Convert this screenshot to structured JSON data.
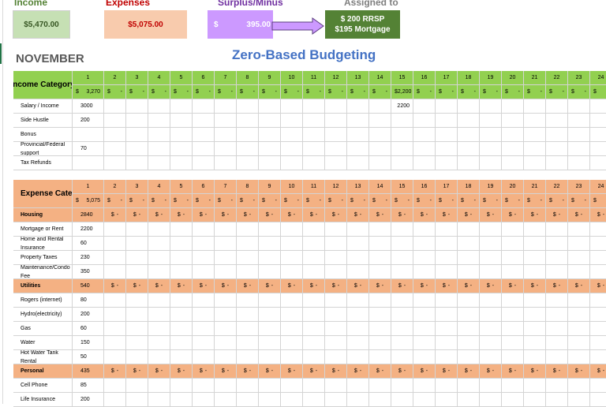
{
  "summary": {
    "income": {
      "label": "Income",
      "value": "$5,470.00",
      "color": "#548235",
      "bg": "#c6e0b4"
    },
    "expenses": {
      "label": "Expenses",
      "value": "$5,075.00",
      "color": "#c00000",
      "bg": "#f8cbad"
    },
    "surplus": {
      "label": "Surplus/Minus",
      "currency": "$",
      "value": "395.00",
      "color": "#7030a0",
      "bg": "#cc99ff"
    },
    "assigned": {
      "label": "Assigned to",
      "line1": "$ 200 RRSP",
      "line2": "$195 Mortgage",
      "bg": "#548235"
    }
  },
  "month": "NOVEMBER",
  "title": "Zero-Based Budgeting",
  "days": [
    "1",
    "2",
    "3",
    "4",
    "5",
    "6",
    "7",
    "8",
    "9",
    "10",
    "11",
    "12",
    "13",
    "14",
    "15",
    "16",
    "17",
    "18",
    "19",
    "20",
    "21",
    "22",
    "23",
    "24"
  ],
  "empty_amount_symbol": "$",
  "empty_amount_dash": "-",
  "income": {
    "header": "Income Category",
    "color": "#92d050",
    "day_totals": {
      "1": {
        "sym": "$",
        "val": "3,270"
      },
      "15": {
        "sym": "",
        "val": "$2,200"
      }
    },
    "rows": [
      {
        "name": "Salary / Income",
        "amount": "3000",
        "days": {
          "15": "2200"
        }
      },
      {
        "name": "Side Hustle",
        "amount": "200",
        "days": {}
      },
      {
        "name": "Bonus",
        "amount": "",
        "days": {}
      },
      {
        "name": "Provincial/Federal support",
        "amount": "70",
        "days": {}
      },
      {
        "name": "Tax Refunds",
        "amount": "",
        "days": {}
      }
    ]
  },
  "expenses": {
    "header": "Expense Category",
    "color": "#f4b183",
    "day_totals": {
      "1": {
        "sym": "$",
        "val": "5,075"
      }
    },
    "rows": [
      {
        "name": "Housing",
        "amount": "2840",
        "category": true
      },
      {
        "name": "Mortgage or Rent",
        "amount": "2200"
      },
      {
        "name": "Home and Rental Insurance",
        "amount": "60"
      },
      {
        "name": "Property Taxes",
        "amount": "230"
      },
      {
        "name": "Maintenance/Condo Fee",
        "amount": "350"
      },
      {
        "name": "Utilities",
        "amount": "540",
        "category": true
      },
      {
        "name": "Rogers (internet)",
        "amount": "80"
      },
      {
        "name": "Hydro(electricity)",
        "amount": "200"
      },
      {
        "name": "Gas",
        "amount": "60"
      },
      {
        "name": "Water",
        "amount": "150"
      },
      {
        "name": "Hot Water Tank Rental",
        "amount": "50"
      },
      {
        "name": "Personal",
        "amount": "435",
        "category": true
      },
      {
        "name": "Cell Phone",
        "amount": "85"
      },
      {
        "name": "Life Insurance",
        "amount": "200"
      }
    ]
  }
}
